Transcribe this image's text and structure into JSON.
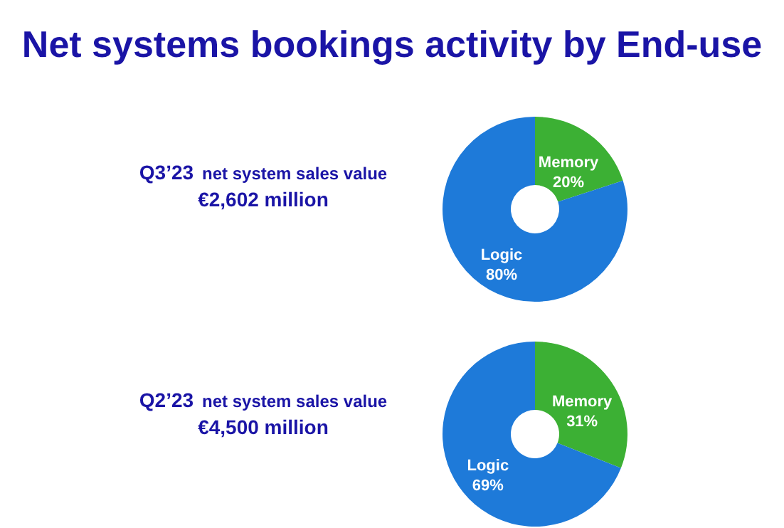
{
  "chart_data": [
    {
      "type": "donut",
      "title": "Net systems bookings activity by End-use",
      "annotations": [
        "Q3’23",
        "net system sales value",
        "€2,602 million"
      ],
      "categories": [
        "Memory",
        "Logic"
      ],
      "values": [
        20,
        80
      ],
      "value_labels": [
        "20%",
        "80%"
      ],
      "colors": [
        "#3cb034",
        "#1e7ad9"
      ]
    },
    {
      "type": "donut",
      "annotations": [
        "Q2’23",
        "net system sales value",
        "€4,500 million"
      ],
      "categories": [
        "Memory",
        "Logic"
      ],
      "values": [
        31,
        69
      ],
      "value_labels": [
        "31%",
        "69%"
      ],
      "colors": [
        "#3cb034",
        "#1e7ad9"
      ]
    }
  ]
}
